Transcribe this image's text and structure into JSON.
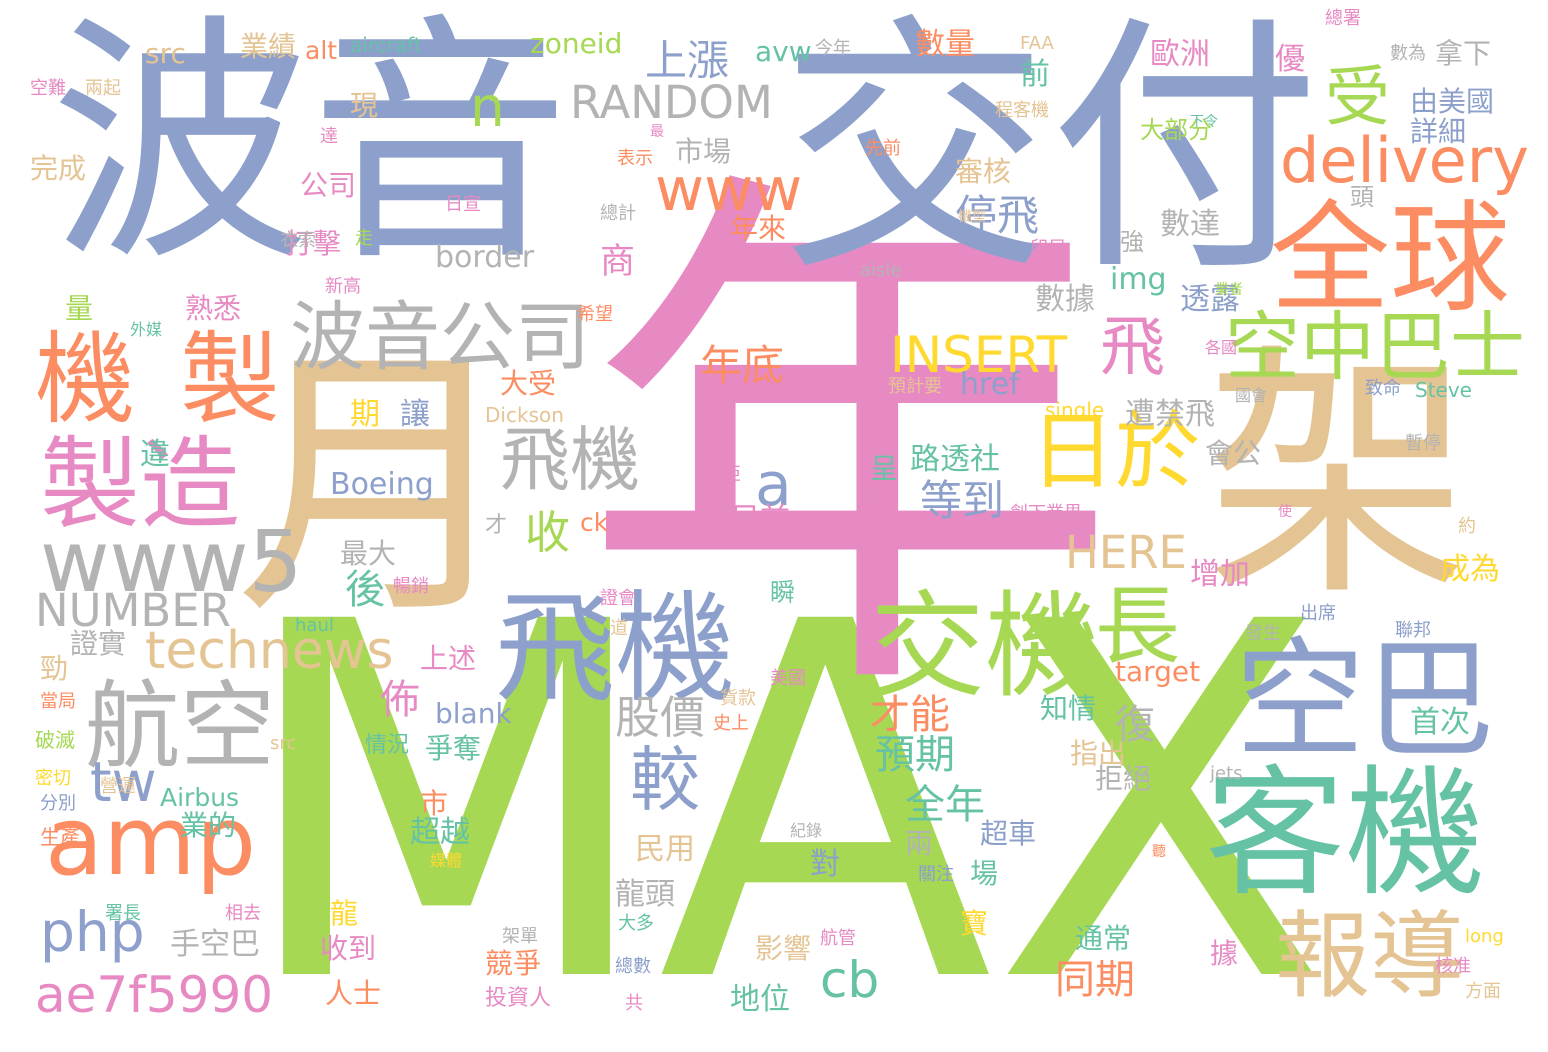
{
  "palette": {
    "blue": "#8da0cb",
    "green": "#a6d854",
    "pink": "#e78ac3",
    "tan": "#e5c494",
    "orange": "#fc8d62",
    "teal": "#66c2a5",
    "yellow": "#ffd92f",
    "gray": "#b3b3b3"
  },
  "words": [
    {
      "text": "MAX",
      "color": "green"
    },
    {
      "text": "年",
      "color": "pink"
    },
    {
      "text": "波音",
      "color": "blue"
    },
    {
      "text": "交付",
      "color": "blue"
    },
    {
      "text": "架",
      "color": "tan"
    },
    {
      "text": "月",
      "color": "tan"
    },
    {
      "text": "客機",
      "color": "teal"
    },
    {
      "text": "全球",
      "color": "orange"
    },
    {
      "text": "空巴",
      "color": "blue"
    },
    {
      "text": "飛機",
      "color": "blue"
    },
    {
      "text": "交機",
      "color": "green"
    },
    {
      "text": "機",
      "color": "orange"
    },
    {
      "text": "製",
      "color": "orange"
    },
    {
      "text": "製造",
      "color": "pink"
    },
    {
      "text": "航空",
      "color": "gray"
    },
    {
      "text": "amp",
      "color": "orange"
    },
    {
      "text": "報導",
      "color": "tan"
    },
    {
      "text": "波音公司",
      "color": "gray"
    },
    {
      "text": "日於",
      "color": "yellow"
    },
    {
      "text": "空中巴士",
      "color": "green"
    },
    {
      "text": "www5",
      "color": "gray"
    },
    {
      "text": "technews",
      "color": "tan"
    },
    {
      "text": "delivery",
      "color": "orange"
    },
    {
      "text": "飛機",
      "color": "gray"
    },
    {
      "text": "www",
      "color": "orange"
    },
    {
      "text": "RANDOM",
      "color": "gray"
    },
    {
      "text": "長",
      "color": "green"
    },
    {
      "text": "ae7f5990",
      "color": "pink"
    },
    {
      "text": "php",
      "color": "blue"
    },
    {
      "text": "較",
      "color": "blue"
    },
    {
      "text": "受",
      "color": "green"
    },
    {
      "text": "n",
      "color": "green"
    },
    {
      "text": "tw",
      "color": "blue"
    },
    {
      "text": "NUMBER",
      "color": "gray"
    },
    {
      "text": "INSERT",
      "color": "yellow"
    },
    {
      "text": "飛",
      "color": "pink"
    },
    {
      "text": "a",
      "color": "blue"
    },
    {
      "text": "cb",
      "color": "teal"
    },
    {
      "text": "股價",
      "color": "gray"
    },
    {
      "text": "HERE",
      "color": "tan"
    },
    {
      "text": "上漲",
      "color": "blue"
    },
    {
      "text": "停飛",
      "color": "blue"
    },
    {
      "text": "年底",
      "color": "orange"
    },
    {
      "text": "等到",
      "color": "blue"
    },
    {
      "text": "預期",
      "color": "teal"
    },
    {
      "text": "全年",
      "color": "teal"
    },
    {
      "text": "同期",
      "color": "orange"
    },
    {
      "text": "復",
      "color": "gray"
    },
    {
      "text": "才能",
      "color": "orange"
    },
    {
      "text": "收",
      "color": "green"
    },
    {
      "text": "後",
      "color": "teal"
    },
    {
      "text": "佈",
      "color": "pink"
    },
    {
      "text": "Boeing",
      "color": "blue"
    },
    {
      "text": "border",
      "color": "gray"
    },
    {
      "text": "市場",
      "color": "gray"
    },
    {
      "text": "審核",
      "color": "tan"
    },
    {
      "text": "年來",
      "color": "orange"
    },
    {
      "text": "商",
      "color": "pink"
    },
    {
      "text": "透露",
      "color": "blue"
    },
    {
      "text": "數據",
      "color": "gray"
    },
    {
      "text": "數達",
      "color": "gray"
    },
    {
      "text": "img",
      "color": "teal"
    },
    {
      "text": "href",
      "color": "blue"
    },
    {
      "text": "遭禁飛",
      "color": "gray"
    },
    {
      "text": "路透社",
      "color": "teal"
    },
    {
      "text": "目前",
      "color": "pink"
    },
    {
      "text": "增加",
      "color": "pink"
    },
    {
      "text": "成為",
      "color": "yellow"
    },
    {
      "text": "首次",
      "color": "teal"
    },
    {
      "text": "歐洲",
      "color": "pink"
    },
    {
      "text": "由美國",
      "color": "blue"
    },
    {
      "text": "詳細",
      "color": "blue"
    },
    {
      "text": "拿下",
      "color": "gray"
    },
    {
      "text": "前",
      "color": "teal"
    },
    {
      "text": "大部分",
      "color": "green"
    },
    {
      "text": "數量",
      "color": "orange"
    },
    {
      "text": "zoneid",
      "color": "green"
    },
    {
      "text": "avw",
      "color": "teal"
    },
    {
      "text": "今年",
      "color": "gray"
    },
    {
      "text": "alt",
      "color": "orange"
    },
    {
      "text": "aircraft",
      "color": "teal"
    },
    {
      "text": "業績",
      "color": "tan"
    },
    {
      "text": "src",
      "color": "tan"
    },
    {
      "text": "現",
      "color": "tan"
    },
    {
      "text": "完成",
      "color": "tan"
    },
    {
      "text": "公司",
      "color": "pink"
    },
    {
      "text": "打擊",
      "color": "pink"
    },
    {
      "text": "熟悉",
      "color": "pink"
    },
    {
      "text": "大受",
      "color": "orange"
    },
    {
      "text": "最大",
      "color": "gray"
    },
    {
      "text": "期",
      "color": "yellow"
    },
    {
      "text": "讓",
      "color": "blue"
    },
    {
      "text": "違",
      "color": "teal"
    },
    {
      "text": "證實",
      "color": "gray"
    },
    {
      "text": "上述",
      "color": "pink"
    },
    {
      "text": "blank",
      "color": "blue"
    },
    {
      "text": "情況",
      "color": "teal"
    },
    {
      "text": "爭奪",
      "color": "teal"
    },
    {
      "text": "Airbus",
      "color": "teal"
    },
    {
      "text": "業的",
      "color": "teal"
    },
    {
      "text": "市",
      "color": "orange"
    },
    {
      "text": "超越",
      "color": "teal"
    },
    {
      "text": "民用",
      "color": "tan"
    },
    {
      "text": "龍頭",
      "color": "gray"
    },
    {
      "text": "手空巴",
      "color": "gray"
    },
    {
      "text": "收到",
      "color": "pink"
    },
    {
      "text": "競爭",
      "color": "orange"
    },
    {
      "text": "人士",
      "color": "orange"
    },
    {
      "text": "龍",
      "color": "yellow"
    },
    {
      "text": "投資人",
      "color": "pink"
    },
    {
      "text": "地位",
      "color": "teal"
    },
    {
      "text": "影響",
      "color": "tan"
    },
    {
      "text": "寶",
      "color": "yellow"
    },
    {
      "text": "通常",
      "color": "teal"
    },
    {
      "text": "據",
      "color": "pink"
    },
    {
      "text": "對",
      "color": "blue"
    },
    {
      "text": "場",
      "color": "teal"
    },
    {
      "text": "超車",
      "color": "blue"
    },
    {
      "text": "兩",
      "color": "gray"
    },
    {
      "text": "指出",
      "color": "tan"
    },
    {
      "text": "拒絕",
      "color": "gray"
    },
    {
      "text": "知情",
      "color": "teal"
    },
    {
      "text": "target",
      "color": "orange"
    },
    {
      "text": "ck",
      "color": "orange"
    },
    {
      "text": "呈",
      "color": "teal"
    },
    {
      "text": "座",
      "color": "pink"
    },
    {
      "text": "會公",
      "color": "gray"
    },
    {
      "text": "強",
      "color": "gray"
    },
    {
      "text": "頭",
      "color": "gray"
    },
    {
      "text": "勁",
      "color": "tan"
    },
    {
      "text": "量",
      "color": "green"
    },
    {
      "text": "src",
      "color": "tan"
    },
    {
      "text": "single",
      "color": "yellow"
    },
    {
      "text": "Steve",
      "color": "teal"
    },
    {
      "text": "Dickson",
      "color": "tan"
    },
    {
      "text": "aisle",
      "color": "gray"
    },
    {
      "text": "haul",
      "color": "teal"
    },
    {
      "text": "jets",
      "color": "gray"
    },
    {
      "text": "long",
      "color": "yellow"
    },
    {
      "text": "FAA",
      "color": "tan"
    },
    {
      "text": "優",
      "color": "pink"
    },
    {
      "text": "才",
      "color": "gray"
    },
    {
      "text": "瞬",
      "color": "teal"
    },
    {
      "text": "總署",
      "color": "pink"
    },
    {
      "text": "數為",
      "color": "gray"
    },
    {
      "text": "程客機",
      "color": "tan"
    },
    {
      "text": "下令",
      "color": "teal"
    },
    {
      "text": "先前",
      "color": "orange"
    },
    {
      "text": "表示",
      "color": "orange"
    },
    {
      "text": "最",
      "color": "pink"
    },
    {
      "text": "日宣",
      "color": "pink"
    },
    {
      "text": "總計",
      "color": "gray"
    },
    {
      "text": "機型",
      "color": "tan"
    },
    {
      "text": "印尼",
      "color": "pink"
    },
    {
      "text": "衣索",
      "color": "gray"
    },
    {
      "text": "走",
      "color": "green"
    },
    {
      "text": "新高",
      "color": "pink"
    },
    {
      "text": "業者",
      "color": "green"
    },
    {
      "text": "希望",
      "color": "orange"
    },
    {
      "text": "外媒",
      "color": "teal"
    },
    {
      "text": "預計要",
      "color": "tan"
    },
    {
      "text": "各國",
      "color": "pink"
    },
    {
      "text": "國會",
      "color": "gray"
    },
    {
      "text": "致命",
      "color": "blue"
    },
    {
      "text": "暫停",
      "color": "gray"
    },
    {
      "text": "比亞",
      "color": "pink"
    },
    {
      "text": "創下業界",
      "color": "pink"
    },
    {
      "text": "使",
      "color": "pink"
    },
    {
      "text": "約",
      "color": "tan"
    },
    {
      "text": "暢銷",
      "color": "pink"
    },
    {
      "text": "證會",
      "color": "pink"
    },
    {
      "text": "道",
      "color": "tan"
    },
    {
      "text": "出席",
      "color": "blue"
    },
    {
      "text": "聯邦",
      "color": "blue"
    },
    {
      "text": "發生",
      "color": "gray"
    },
    {
      "text": "美國",
      "color": "pink"
    },
    {
      "text": "貨款",
      "color": "tan"
    },
    {
      "text": "史上",
      "color": "orange"
    },
    {
      "text": "當局",
      "color": "orange"
    },
    {
      "text": "破滅",
      "color": "green"
    },
    {
      "text": "密切",
      "color": "yellow"
    },
    {
      "text": "分別",
      "color": "blue"
    },
    {
      "text": "營運",
      "color": "tan"
    },
    {
      "text": "生產",
      "color": "orange"
    },
    {
      "text": "紀錄",
      "color": "gray"
    },
    {
      "text": "媒體",
      "color": "yellow"
    },
    {
      "text": "關注",
      "color": "blue"
    },
    {
      "text": "聽",
      "color": "orange"
    },
    {
      "text": "署長",
      "color": "teal"
    },
    {
      "text": "相去",
      "color": "pink"
    },
    {
      "text": "架單",
      "color": "gray"
    },
    {
      "text": "大多",
      "color": "teal"
    },
    {
      "text": "航管",
      "color": "pink"
    },
    {
      "text": "總數",
      "color": "blue"
    },
    {
      "text": "共",
      "color": "pink"
    },
    {
      "text": "核准",
      "color": "pink"
    },
    {
      "text": "方面",
      "color": "tan"
    },
    {
      "text": "空難",
      "color": "pink"
    },
    {
      "text": "兩起",
      "color": "tan"
    },
    {
      "text": "達",
      "color": "pink"
    }
  ]
}
